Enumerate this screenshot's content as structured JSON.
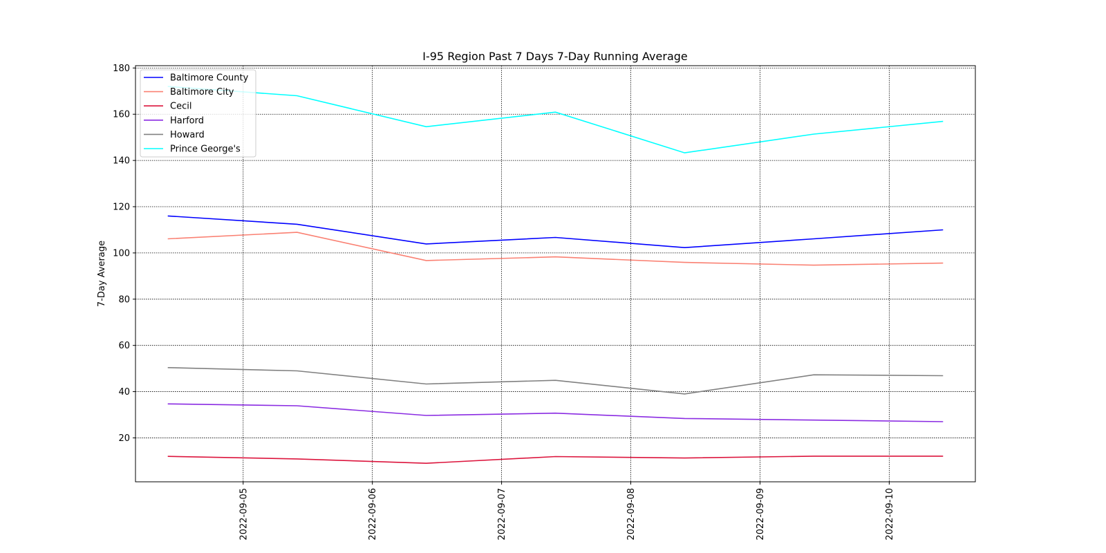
{
  "chart_data": {
    "type": "line",
    "title": "I-95 Region Past 7 Days 7-Day Running Average",
    "xlabel": "",
    "ylabel": "7-Day Average",
    "x": [
      "2022-09-04 10:00",
      "2022-09-05 10:00",
      "2022-09-06 10:00",
      "2022-09-07 10:00",
      "2022-09-08 10:00",
      "2022-09-09 10:00",
      "2022-09-10 10:00"
    ],
    "xticks": [
      "2022-09-05",
      "2022-09-06",
      "2022-09-07",
      "2022-09-08",
      "2022-09-09",
      "2022-09-10"
    ],
    "xlim": [
      "2022-09-04 04:00",
      "2022-09-10 16:00"
    ],
    "yticks": [
      20,
      40,
      60,
      80,
      100,
      120,
      140,
      160,
      180
    ],
    "ylim": [
      1,
      181
    ],
    "grid": true,
    "legend_position": "top-left",
    "series": [
      {
        "name": "Baltimore County",
        "color": "#0000ff",
        "values": [
          116.0,
          112.4,
          103.9,
          106.7,
          102.3,
          106.1,
          110.0
        ]
      },
      {
        "name": "Baltimore City",
        "color": "#fa8072",
        "values": [
          106.1,
          108.9,
          96.7,
          98.3,
          95.9,
          94.7,
          95.6
        ]
      },
      {
        "name": "Cecil",
        "color": "#dc143c",
        "values": [
          12.0,
          10.9,
          9.0,
          11.9,
          11.3,
          12.1,
          12.1
        ]
      },
      {
        "name": "Harford",
        "color": "#8a2be2",
        "values": [
          34.7,
          33.9,
          29.7,
          30.7,
          28.4,
          27.7,
          27.0
        ]
      },
      {
        "name": "Howard",
        "color": "#808080",
        "values": [
          50.4,
          49.0,
          43.3,
          44.9,
          39.0,
          47.3,
          46.9
        ]
      },
      {
        "name": "Prince George's",
        "color": "#00ffff",
        "values": [
          172.0,
          168.0,
          154.6,
          160.9,
          143.3,
          151.4,
          156.9
        ]
      }
    ]
  }
}
